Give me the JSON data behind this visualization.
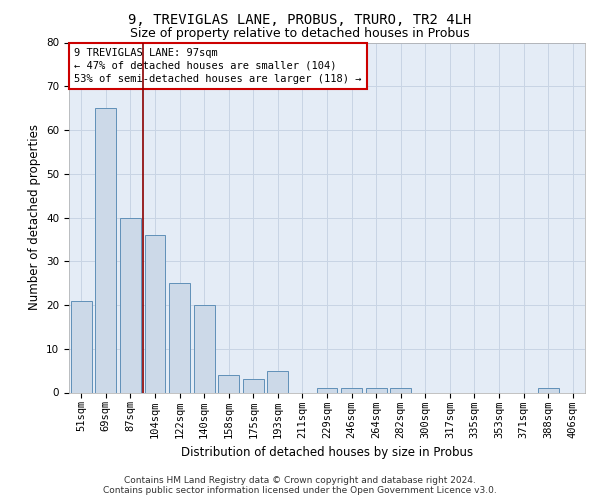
{
  "title_line1": "9, TREVIGLAS LANE, PROBUS, TRURO, TR2 4LH",
  "title_line2": "Size of property relative to detached houses in Probus",
  "xlabel": "Distribution of detached houses by size in Probus",
  "ylabel": "Number of detached properties",
  "categories": [
    "51sqm",
    "69sqm",
    "87sqm",
    "104sqm",
    "122sqm",
    "140sqm",
    "158sqm",
    "175sqm",
    "193sqm",
    "211sqm",
    "229sqm",
    "246sqm",
    "264sqm",
    "282sqm",
    "300sqm",
    "317sqm",
    "335sqm",
    "353sqm",
    "371sqm",
    "388sqm",
    "406sqm"
  ],
  "values": [
    21,
    65,
    40,
    36,
    25,
    20,
    4,
    3,
    5,
    0,
    1,
    1,
    1,
    1,
    0,
    0,
    0,
    0,
    0,
    1,
    0
  ],
  "bar_color": "#ccd9e8",
  "bar_edge_color": "#6090b8",
  "vline_color": "#8b0000",
  "vline_x_index": 2.5,
  "ylim": [
    0,
    80
  ],
  "yticks": [
    0,
    10,
    20,
    30,
    40,
    50,
    60,
    70,
    80
  ],
  "grid_color": "#c8d4e4",
  "bg_color": "#e4ecf6",
  "annotation_box_text_line1": "9 TREVIGLAS LANE: 97sqm",
  "annotation_box_text_line2": "← 47% of detached houses are smaller (104)",
  "annotation_box_text_line3": "53% of semi-detached houses are larger (118) →",
  "annotation_box_color": "#ffffff",
  "annotation_box_edge_color": "#cc0000",
  "footer_line1": "Contains HM Land Registry data © Crown copyright and database right 2024.",
  "footer_line2": "Contains public sector information licensed under the Open Government Licence v3.0.",
  "title_fontsize": 10,
  "subtitle_fontsize": 9,
  "axis_label_fontsize": 8.5,
  "tick_fontsize": 7.5,
  "annotation_fontsize": 7.5,
  "footer_fontsize": 6.5
}
